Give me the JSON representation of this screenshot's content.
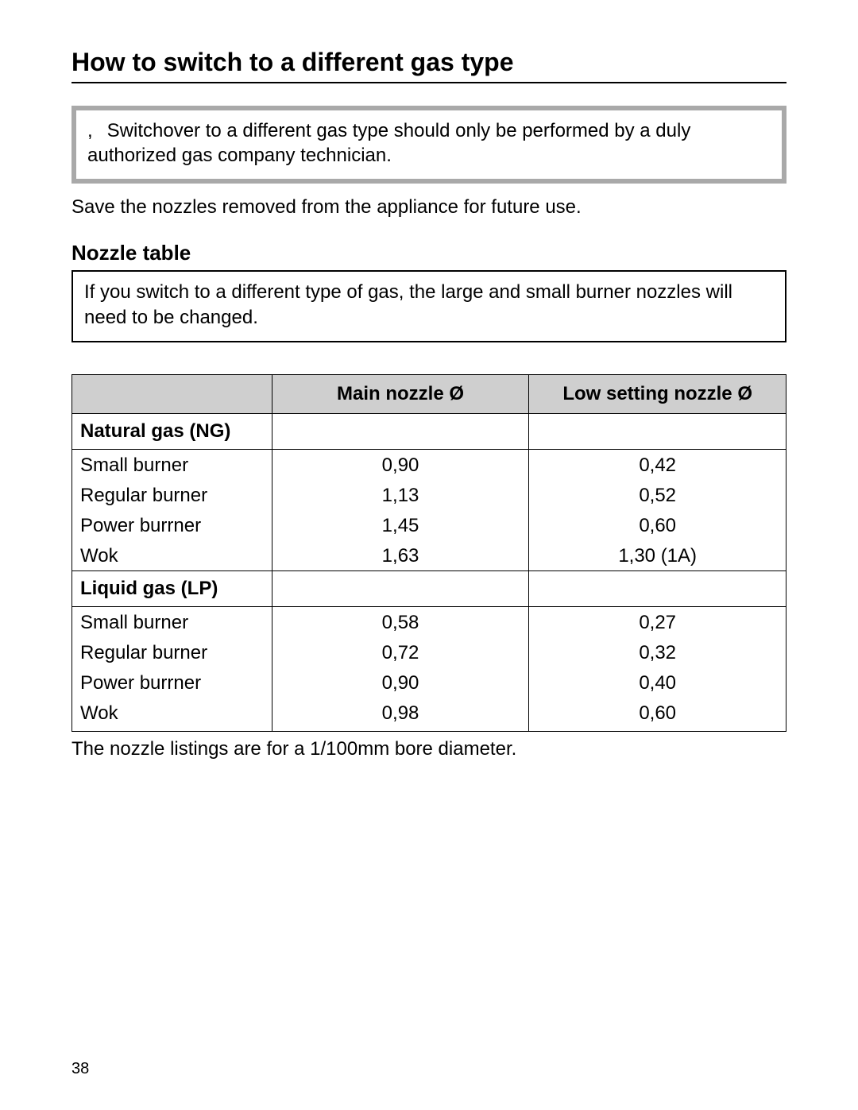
{
  "page": {
    "title": "How to switch to a different gas type",
    "number": "38"
  },
  "callout1": {
    "lead": ",",
    "text": "Switchover to a different gas type should only be performed by a duly authorized gas company technician."
  },
  "body1": "Save the nozzles removed from the appliance for future use.",
  "subheading": "Nozzle table",
  "callout2": "If you switch to a different type of gas, the large and small burner nozzles will need to be changed.",
  "table": {
    "header": {
      "blank": "",
      "main": "Main nozzle Ø",
      "low": "Low setting nozzle Ø"
    },
    "section1": {
      "label": "Natural gas (NG)",
      "rows": [
        {
          "label": "Small burner",
          "main": "0,90",
          "low": "0,42"
        },
        {
          "label": "Regular burner",
          "main": "1,13",
          "low": "0,52"
        },
        {
          "label": "Power burrner",
          "main": "1,45",
          "low": "0,60"
        },
        {
          "label": "Wok",
          "main": "1,63",
          "low": "1,30 (1A)"
        }
      ]
    },
    "section2": {
      "label": "Liquid gas (LP)",
      "rows": [
        {
          "label": "Small burner",
          "main": "0,58",
          "low": "0,27"
        },
        {
          "label": "Regular burner",
          "main": "0,72",
          "low": "0,32"
        },
        {
          "label": "Power burrner",
          "main": "0,90",
          "low": "0,40"
        },
        {
          "label": "Wok",
          "main": "0,98",
          "low": "0,60"
        }
      ]
    }
  },
  "footnote": "The nozzle listings are for a 1/100mm bore diameter.",
  "style": {
    "background_color": "#ffffff",
    "text_color": "#000000",
    "title_fontsize": 32,
    "body_fontsize": 24,
    "subheading_fontsize": 26,
    "callout1_border_color": "#a9a9a9",
    "callout1_border_width": 6,
    "callout2_border_color": "#000000",
    "callout2_border_width": 2,
    "table_header_bg": "#cfcfcf",
    "table_border_color": "#000000",
    "table_border_width": 1.5,
    "column_widths_pct": [
      28,
      36,
      36
    ],
    "font_family": "Arial"
  }
}
